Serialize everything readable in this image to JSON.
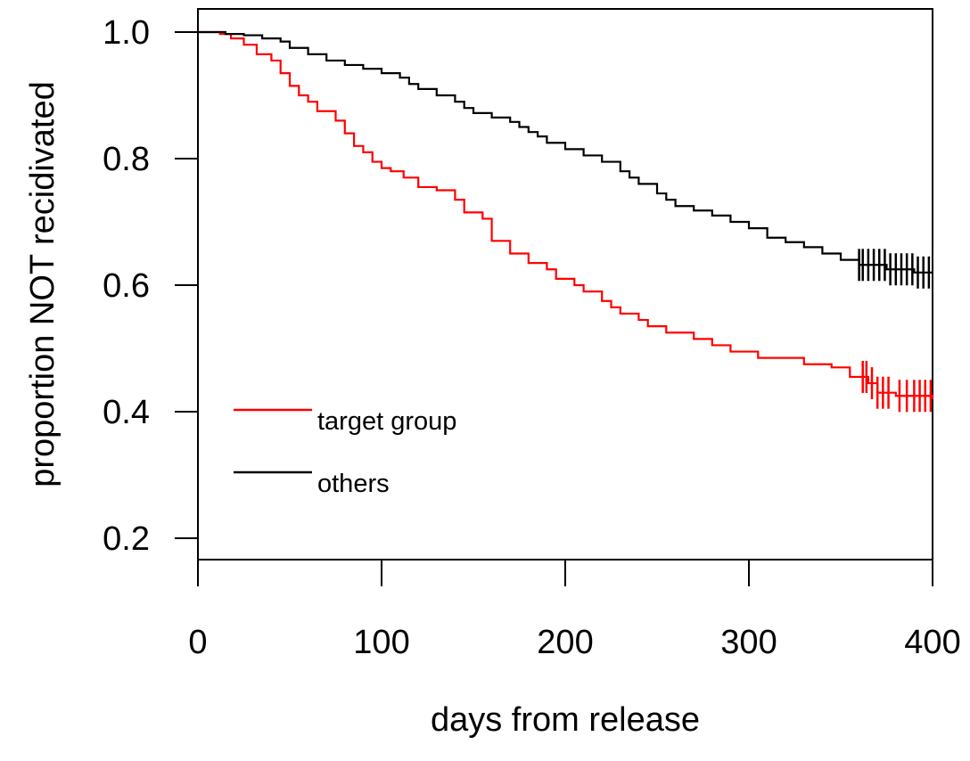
{
  "chart_data": {
    "type": "line",
    "step": true,
    "xlabel": "days from release",
    "ylabel": "proportion NOT recidivated",
    "xlim": [
      0,
      400
    ],
    "ylim": [
      0.2,
      1.0
    ],
    "x_ticks": [
      "0",
      "100",
      "200",
      "300",
      "400"
    ],
    "y_ticks": [
      "0.2",
      "0.4",
      "0.6",
      "0.8",
      "1.0"
    ],
    "grid": false,
    "legend": {
      "position": "lower-left"
    },
    "series": [
      {
        "name": "target group",
        "color": "#ff0000",
        "points": [
          [
            0,
            1.0
          ],
          [
            12,
            0.997
          ],
          [
            18,
            0.99
          ],
          [
            25,
            0.98
          ],
          [
            32,
            0.965
          ],
          [
            40,
            0.955
          ],
          [
            45,
            0.935
          ],
          [
            50,
            0.915
          ],
          [
            55,
            0.9
          ],
          [
            60,
            0.89
          ],
          [
            65,
            0.875
          ],
          [
            75,
            0.86
          ],
          [
            80,
            0.84
          ],
          [
            85,
            0.82
          ],
          [
            90,
            0.81
          ],
          [
            95,
            0.795
          ],
          [
            100,
            0.785
          ],
          [
            105,
            0.78
          ],
          [
            112,
            0.77
          ],
          [
            120,
            0.755
          ],
          [
            130,
            0.75
          ],
          [
            140,
            0.735
          ],
          [
            145,
            0.715
          ],
          [
            155,
            0.705
          ],
          [
            160,
            0.67
          ],
          [
            170,
            0.65
          ],
          [
            180,
            0.635
          ],
          [
            190,
            0.625
          ],
          [
            195,
            0.61
          ],
          [
            205,
            0.6
          ],
          [
            210,
            0.59
          ],
          [
            220,
            0.575
          ],
          [
            225,
            0.565
          ],
          [
            230,
            0.555
          ],
          [
            240,
            0.545
          ],
          [
            245,
            0.535
          ],
          [
            255,
            0.525
          ],
          [
            270,
            0.515
          ],
          [
            280,
            0.505
          ],
          [
            290,
            0.495
          ],
          [
            305,
            0.485
          ],
          [
            330,
            0.475
          ],
          [
            345,
            0.47
          ],
          [
            355,
            0.455
          ],
          [
            365,
            0.445
          ],
          [
            370,
            0.43
          ],
          [
            380,
            0.425
          ],
          [
            400,
            0.42
          ]
        ],
        "censor_x": [
          362,
          364,
          367,
          370,
          373,
          376,
          382,
          386,
          390,
          393,
          396,
          399
        ]
      },
      {
        "name": "others",
        "color": "#000000",
        "points": [
          [
            0,
            1.0
          ],
          [
            15,
            0.997
          ],
          [
            25,
            0.995
          ],
          [
            35,
            0.99
          ],
          [
            45,
            0.985
          ],
          [
            50,
            0.975
          ],
          [
            60,
            0.965
          ],
          [
            70,
            0.955
          ],
          [
            80,
            0.948
          ],
          [
            90,
            0.942
          ],
          [
            100,
            0.935
          ],
          [
            110,
            0.928
          ],
          [
            115,
            0.918
          ],
          [
            120,
            0.91
          ],
          [
            130,
            0.9
          ],
          [
            140,
            0.89
          ],
          [
            145,
            0.88
          ],
          [
            150,
            0.872
          ],
          [
            160,
            0.865
          ],
          [
            170,
            0.858
          ],
          [
            175,
            0.85
          ],
          [
            180,
            0.842
          ],
          [
            185,
            0.835
          ],
          [
            190,
            0.825
          ],
          [
            200,
            0.815
          ],
          [
            210,
            0.805
          ],
          [
            220,
            0.795
          ],
          [
            230,
            0.78
          ],
          [
            235,
            0.77
          ],
          [
            240,
            0.76
          ],
          [
            250,
            0.745
          ],
          [
            255,
            0.735
          ],
          [
            260,
            0.725
          ],
          [
            270,
            0.718
          ],
          [
            280,
            0.71
          ],
          [
            290,
            0.7
          ],
          [
            300,
            0.69
          ],
          [
            310,
            0.675
          ],
          [
            320,
            0.668
          ],
          [
            330,
            0.66
          ],
          [
            340,
            0.65
          ],
          [
            350,
            0.64
          ],
          [
            360,
            0.632
          ],
          [
            375,
            0.625
          ],
          [
            390,
            0.62
          ],
          [
            400,
            0.62
          ]
        ],
        "censor_x": [
          360,
          362,
          365,
          368,
          371,
          374,
          377,
          380,
          383,
          386,
          389,
          392,
          395,
          398
        ]
      }
    ]
  }
}
